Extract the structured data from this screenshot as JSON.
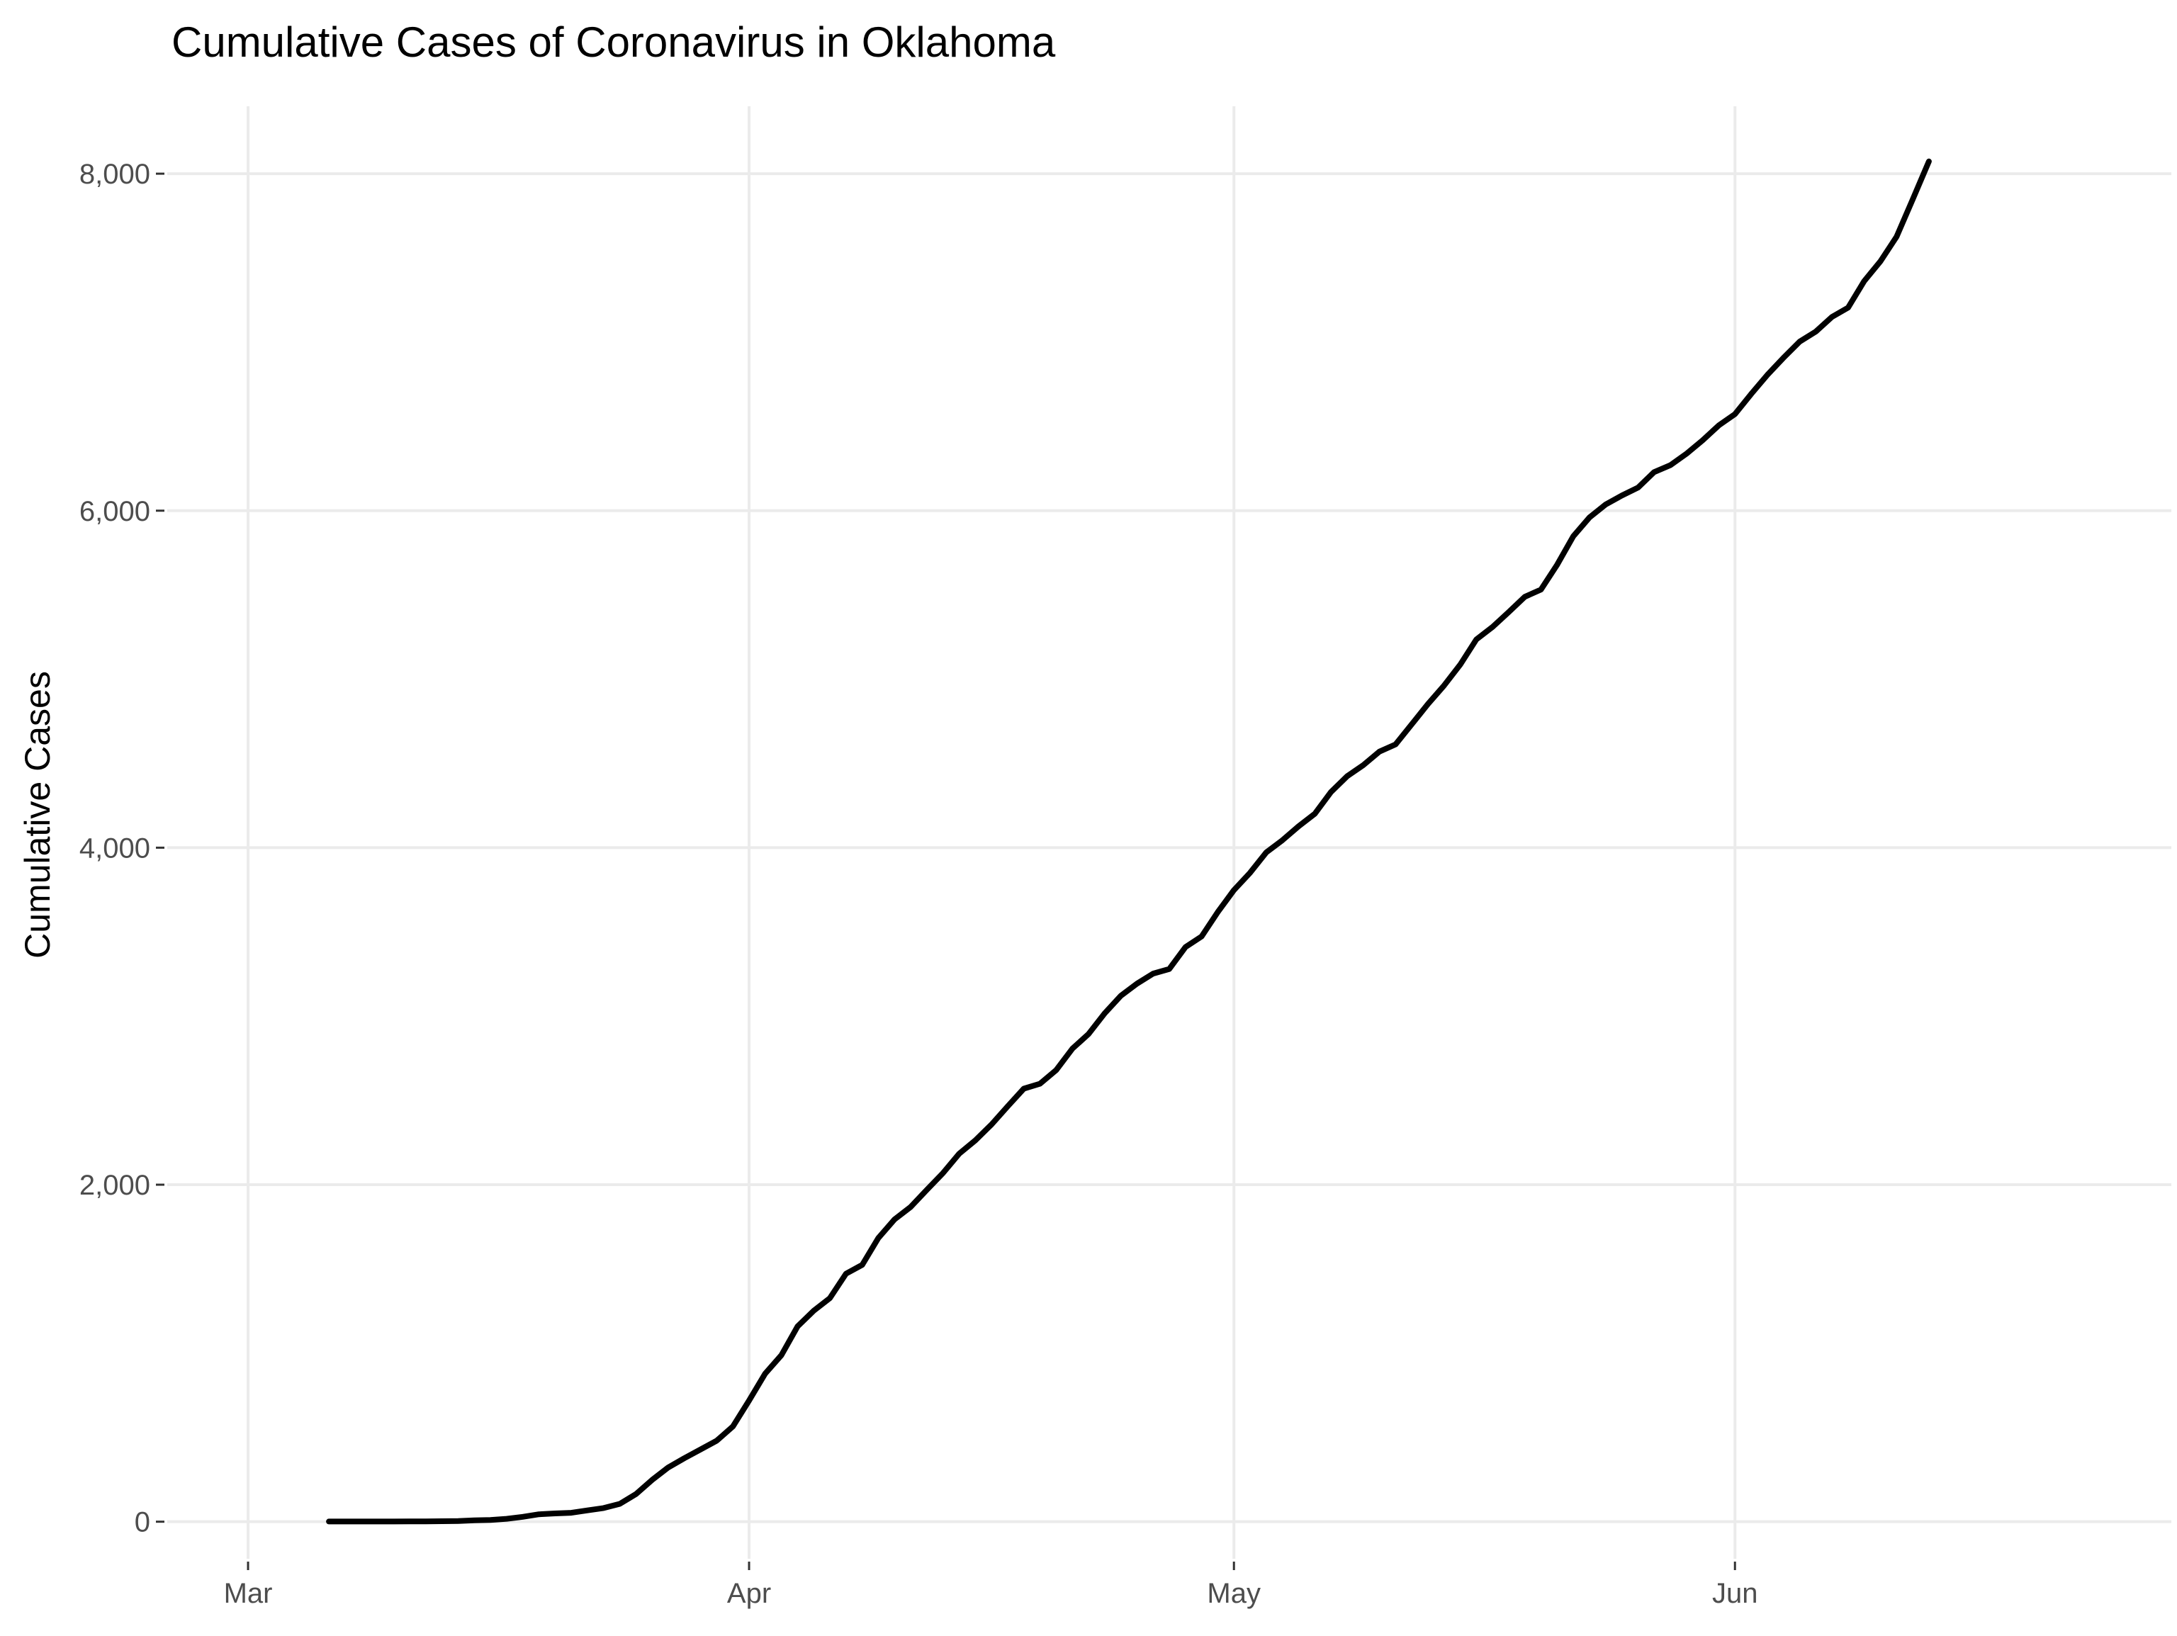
{
  "chart_data": {
    "type": "line",
    "title": "Cumulative Cases of Coronavirus in Oklahoma",
    "xlabel": "",
    "ylabel": "Cumulative Cases",
    "x_ticks": [
      {
        "label": "Mar",
        "date": "2020-03-01"
      },
      {
        "label": "Apr",
        "date": "2020-04-01"
      },
      {
        "label": "May",
        "date": "2020-05-01"
      },
      {
        "label": "Jun",
        "date": "2020-06-01"
      }
    ],
    "y_ticks": [
      {
        "label": "0",
        "value": 0
      },
      {
        "label": "2,000",
        "value": 2000
      },
      {
        "label": "4,000",
        "value": 4000
      },
      {
        "label": "6,000",
        "value": 6000
      },
      {
        "label": "8,000",
        "value": 8000
      }
    ],
    "xlim": [
      "2020-02-25",
      "2020-06-28"
    ],
    "ylim": [
      -220,
      8400
    ],
    "grid": true,
    "line_color": "#000000",
    "series": [
      {
        "points": [
          [
            "2020-03-06",
            1
          ],
          [
            "2020-03-07",
            1
          ],
          [
            "2020-03-08",
            1
          ],
          [
            "2020-03-09",
            1
          ],
          [
            "2020-03-10",
            1
          ],
          [
            "2020-03-11",
            2
          ],
          [
            "2020-03-12",
            2
          ],
          [
            "2020-03-13",
            3
          ],
          [
            "2020-03-14",
            4
          ],
          [
            "2020-03-15",
            8
          ],
          [
            "2020-03-16",
            10
          ],
          [
            "2020-03-17",
            17
          ],
          [
            "2020-03-18",
            29
          ],
          [
            "2020-03-19",
            44
          ],
          [
            "2020-03-20",
            49
          ],
          [
            "2020-03-21",
            53
          ],
          [
            "2020-03-22",
            67
          ],
          [
            "2020-03-23",
            81
          ],
          [
            "2020-03-24",
            106
          ],
          [
            "2020-03-25",
            164
          ],
          [
            "2020-03-26",
            248
          ],
          [
            "2020-03-27",
            322
          ],
          [
            "2020-03-28",
            377
          ],
          [
            "2020-03-29",
            429
          ],
          [
            "2020-03-30",
            481
          ],
          [
            "2020-03-31",
            565
          ],
          [
            "2020-04-01",
            719
          ],
          [
            "2020-04-02",
            879
          ],
          [
            "2020-04-03",
            988
          ],
          [
            "2020-04-04",
            1159
          ],
          [
            "2020-04-05",
            1252
          ],
          [
            "2020-04-06",
            1327
          ],
          [
            "2020-04-07",
            1472
          ],
          [
            "2020-04-08",
            1524
          ],
          [
            "2020-04-09",
            1684
          ],
          [
            "2020-04-10",
            1794
          ],
          [
            "2020-04-11",
            1868
          ],
          [
            "2020-04-12",
            1970
          ],
          [
            "2020-04-13",
            2069
          ],
          [
            "2020-04-14",
            2184
          ],
          [
            "2020-04-15",
            2263
          ],
          [
            "2020-04-16",
            2357
          ],
          [
            "2020-04-17",
            2465
          ],
          [
            "2020-04-18",
            2570
          ],
          [
            "2020-04-19",
            2599
          ],
          [
            "2020-04-20",
            2680
          ],
          [
            "2020-04-21",
            2807
          ],
          [
            "2020-04-22",
            2894
          ],
          [
            "2020-04-23",
            3017
          ],
          [
            "2020-04-24",
            3121
          ],
          [
            "2020-04-25",
            3193
          ],
          [
            "2020-04-26",
            3253
          ],
          [
            "2020-04-27",
            3280
          ],
          [
            "2020-04-28",
            3410
          ],
          [
            "2020-04-29",
            3473
          ],
          [
            "2020-04-30",
            3618
          ],
          [
            "2020-05-01",
            3748
          ],
          [
            "2020-05-02",
            3851
          ],
          [
            "2020-05-03",
            3972
          ],
          [
            "2020-05-04",
            4044
          ],
          [
            "2020-05-05",
            4127
          ],
          [
            "2020-05-06",
            4201
          ],
          [
            "2020-05-07",
            4330
          ],
          [
            "2020-05-08",
            4424
          ],
          [
            "2020-05-09",
            4490
          ],
          [
            "2020-05-10",
            4570
          ],
          [
            "2020-05-11",
            4613
          ],
          [
            "2020-05-12",
            4732
          ],
          [
            "2020-05-13",
            4852
          ],
          [
            "2020-05-14",
            4962
          ],
          [
            "2020-05-15",
            5086
          ],
          [
            "2020-05-16",
            5236
          ],
          [
            "2020-05-17",
            5310
          ],
          [
            "2020-05-18",
            5398
          ],
          [
            "2020-05-19",
            5489
          ],
          [
            "2020-05-20",
            5532
          ],
          [
            "2020-05-21",
            5680
          ],
          [
            "2020-05-22",
            5849
          ],
          [
            "2020-05-23",
            5960
          ],
          [
            "2020-05-24",
            6037
          ],
          [
            "2020-05-25",
            6090
          ],
          [
            "2020-05-26",
            6137
          ],
          [
            "2020-05-27",
            6229
          ],
          [
            "2020-05-28",
            6270
          ],
          [
            "2020-05-29",
            6338
          ],
          [
            "2020-05-30",
            6418
          ],
          [
            "2020-05-31",
            6506
          ],
          [
            "2020-06-01",
            6573
          ],
          [
            "2020-06-02",
            6692
          ],
          [
            "2020-06-03",
            6805
          ],
          [
            "2020-06-04",
            6907
          ],
          [
            "2020-06-05",
            7003
          ],
          [
            "2020-06-06",
            7063
          ],
          [
            "2020-06-07",
            7150
          ],
          [
            "2020-06-08",
            7205
          ],
          [
            "2020-06-09",
            7363
          ],
          [
            "2020-06-10",
            7480
          ],
          [
            "2020-06-11",
            7626
          ],
          [
            "2020-06-12",
            7848
          ],
          [
            "2020-06-13",
            8073
          ]
        ]
      }
    ]
  }
}
